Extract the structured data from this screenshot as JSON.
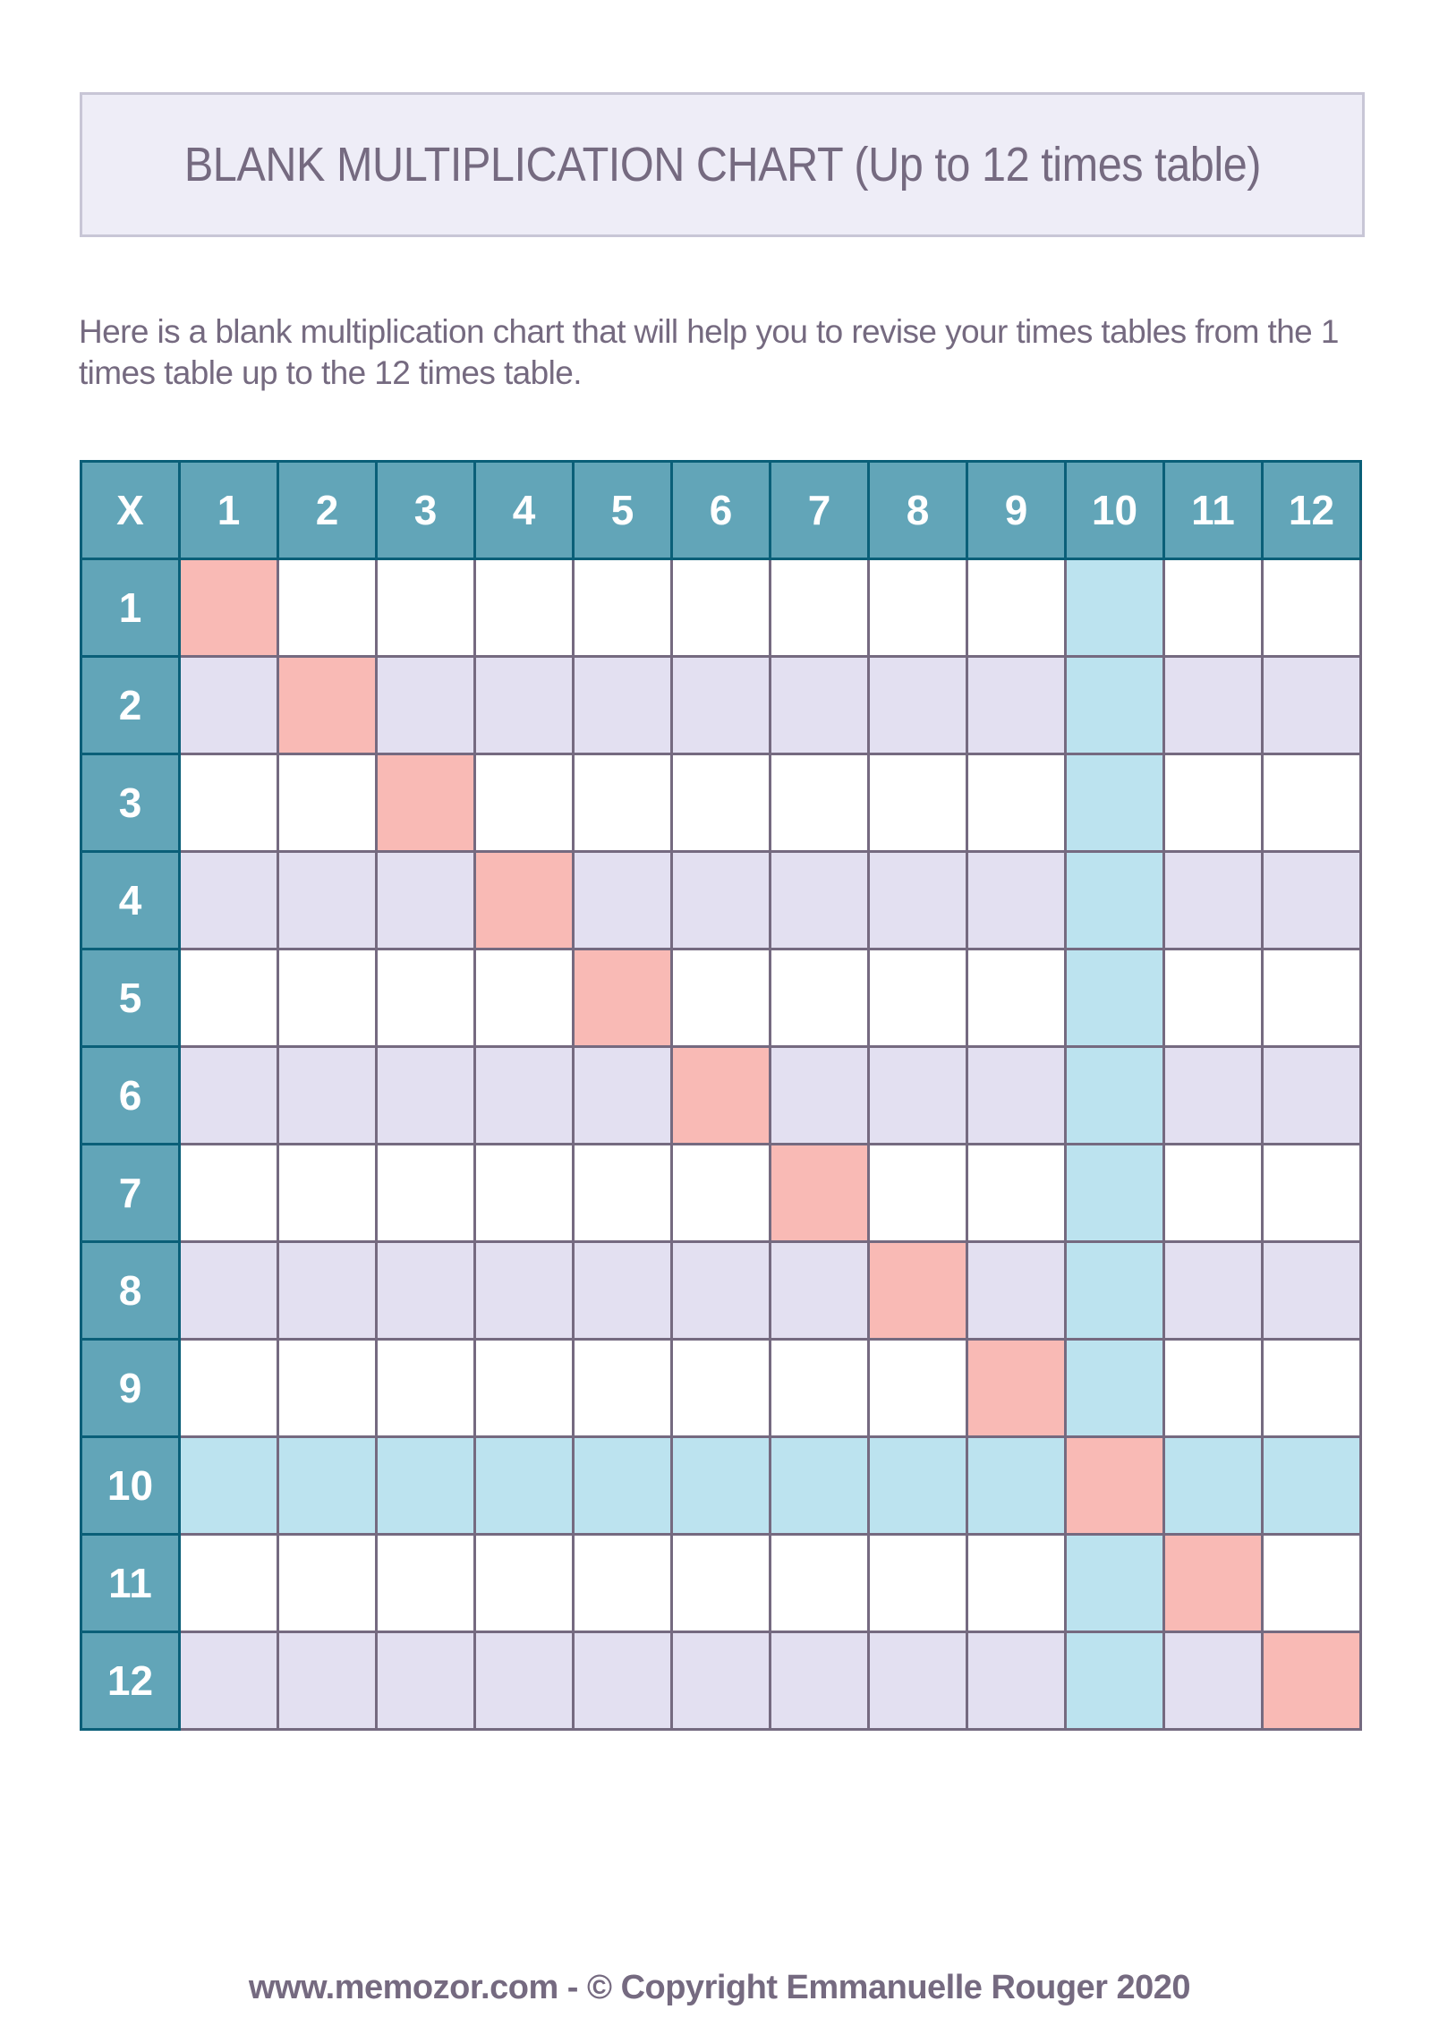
{
  "title": "BLANK MULTIPLICATION CHART (Up to 12 times table)",
  "description": "Here is a blank multiplication chart that will help you to revise your times tables from the 1 times table up to the 12 times table.",
  "table": {
    "corner": "X",
    "columns": [
      "1",
      "2",
      "3",
      "4",
      "5",
      "6",
      "7",
      "8",
      "9",
      "10",
      "11",
      "12"
    ],
    "rows": [
      "1",
      "2",
      "3",
      "4",
      "5",
      "6",
      "7",
      "8",
      "9",
      "10",
      "11",
      "12"
    ],
    "highlight_table": 10
  },
  "colors": {
    "header": "#62a5b8",
    "header_border": "#0a5f78",
    "diagonal": "#f9bab5",
    "highlight": "#bce3ef",
    "alt_row": "#e3e0f1",
    "grid": "#756a80",
    "text": "#756a80"
  },
  "footer": "www.memozor.com - © Copyright Emmanuelle Rouger 2020"
}
